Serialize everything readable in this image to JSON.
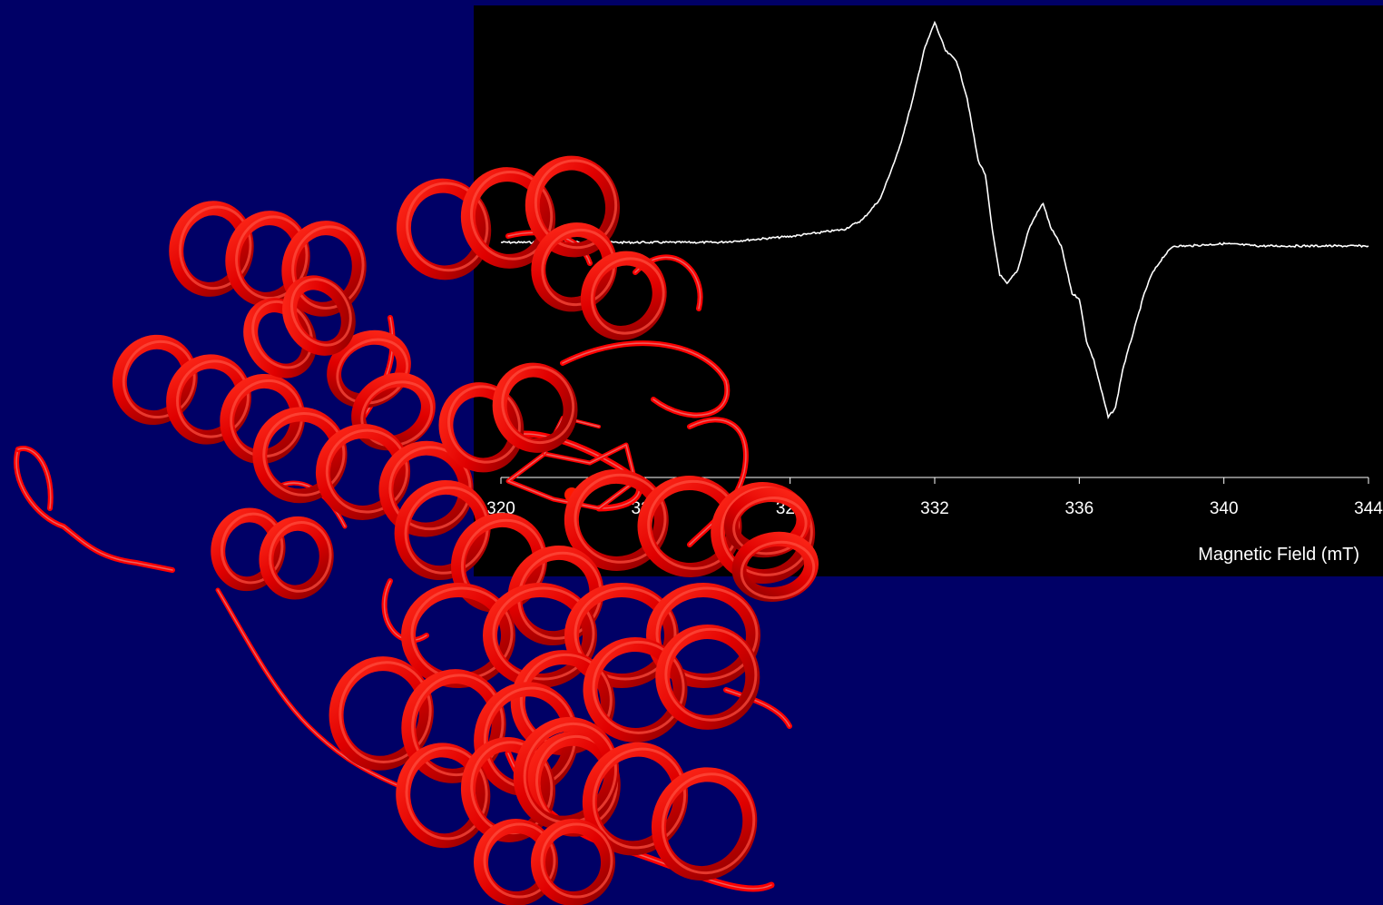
{
  "slide": {
    "background_color": "#000066",
    "panel_color": "#000000",
    "protein_image": {
      "icon": "protein-ribbon-structure",
      "color": "#ff0000"
    }
  },
  "chart_data": {
    "type": "line",
    "title": "",
    "xlabel": "Magnetic Field (mT)",
    "ylabel": "",
    "xlim": [
      320,
      344
    ],
    "ylim": [
      -1.0,
      1.0
    ],
    "x_ticks": [
      320,
      324,
      328,
      332,
      336,
      340,
      344
    ],
    "x_tick_labels": [
      "320",
      "324",
      "328",
      "332",
      "336",
      "340",
      "344"
    ],
    "grid": false,
    "line_color": "#ffffff",
    "series": [
      {
        "x": [
          320,
          326,
          328,
          329.5,
          330,
          330.5,
          331,
          331.4,
          331.7,
          332.0,
          332.3,
          332.6,
          332.9,
          333.2,
          333.4,
          333.6,
          333.8,
          334.0,
          334.3,
          334.6,
          334.8,
          335.0,
          335.2,
          335.5,
          335.8,
          336.0,
          336.2,
          336.4,
          336.6,
          336.8,
          337.0,
          337.2,
          337.5,
          337.8,
          338.0,
          338.3,
          338.6,
          339.0,
          340,
          341,
          342,
          344
        ],
        "y": [
          0.015,
          0.015,
          0.04,
          0.07,
          0.11,
          0.2,
          0.4,
          0.62,
          0.82,
          0.94,
          0.82,
          0.78,
          0.62,
          0.36,
          0.3,
          0.06,
          -0.12,
          -0.16,
          -0.1,
          0.07,
          0.13,
          0.18,
          0.08,
          0.0,
          -0.2,
          -0.22,
          -0.4,
          -0.48,
          -0.6,
          -0.72,
          -0.68,
          -0.52,
          -0.36,
          -0.2,
          -0.12,
          -0.05,
          0.0,
          0.0,
          0.01,
          0.0,
          0.0,
          0.0
        ]
      }
    ]
  }
}
